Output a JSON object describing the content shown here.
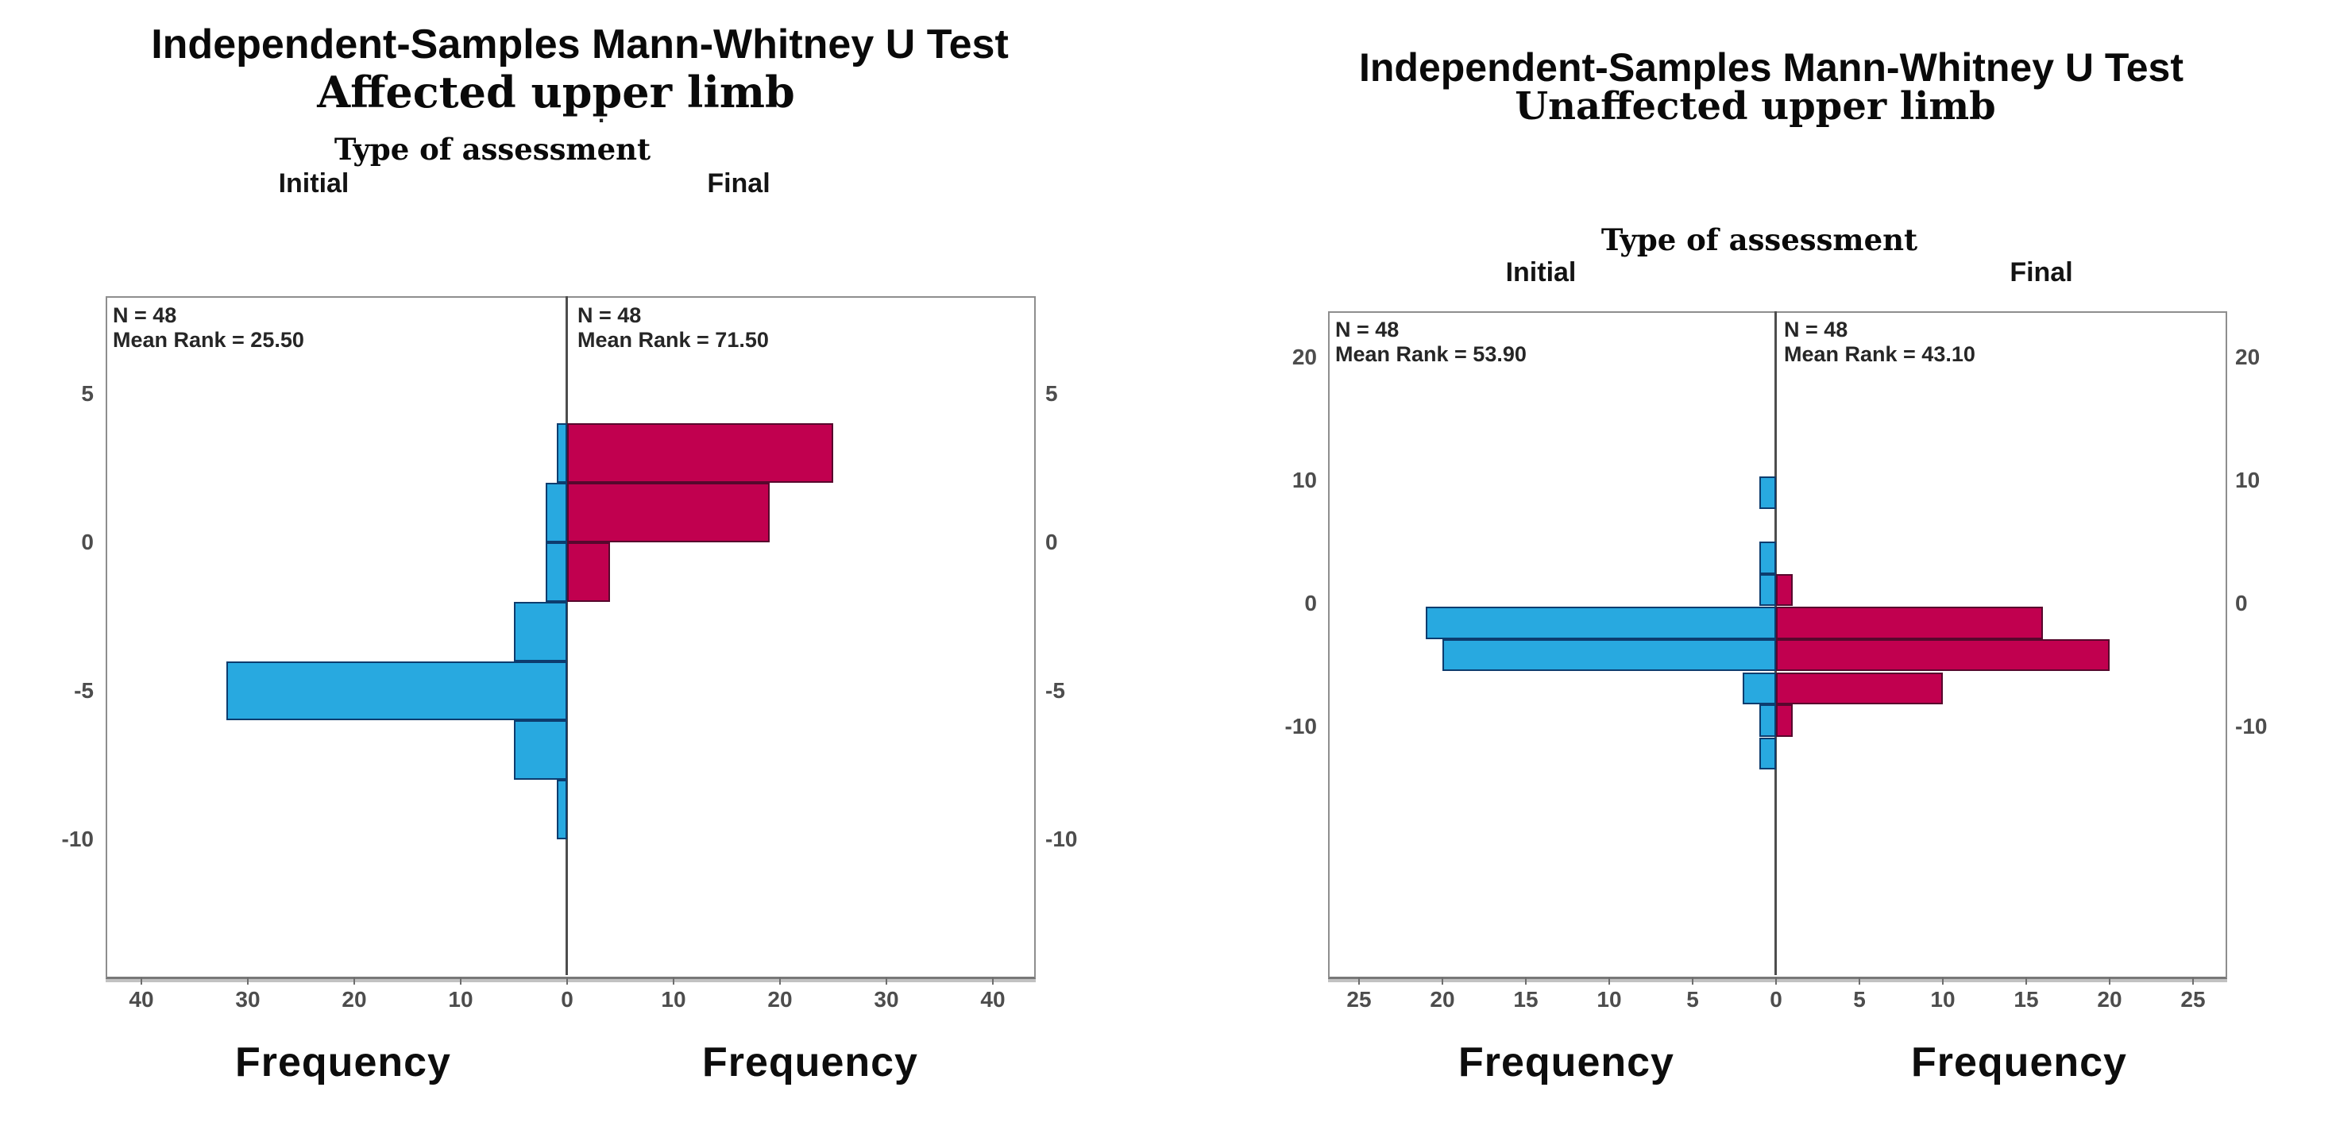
{
  "colors": {
    "initial_bar": "#28A9E0",
    "initial_bar_border": "#0D3C6E",
    "final_bar": "#C1004F",
    "final_bar_border": "#57082D",
    "axis_line": "#4D4D4D",
    "frame": "#8E8E8E",
    "tick_text": "#4D4D4D"
  },
  "charts": [
    {
      "title": "Independent-Samples Mann-Whitney U Test",
      "subtitle": "Affected upper limb",
      "stray_mark": ".",
      "panel_label": "Type of assessment",
      "group_left": "Initial",
      "group_right": "Final",
      "stats_initial_n": "N = 48",
      "stats_initial_mean_rank": "Mean Rank = 25.50",
      "stats_final_n": "N = 48",
      "stats_final_mean_rank": "Mean Rank = 71.50",
      "x_axis_label": "Frequency",
      "axis": {
        "y_ticks": [
          "5",
          "0",
          "-5",
          "-10"
        ],
        "x_ticks": [
          "40",
          "30",
          "20",
          "10",
          "0",
          "10",
          "20",
          "30",
          "40"
        ]
      },
      "chart_data": {
        "type": "bar",
        "variant": "population-pyramid-histogram",
        "orientation": "horizontal",
        "title": "Independent-Samples Mann-Whitney U Test — Affected upper limb",
        "value_axis_label": "Frequency",
        "bin_width": 2,
        "y_tick_values": [
          5,
          0,
          -5,
          -10
        ],
        "x_tick_step": 10,
        "x_tick_max": 40,
        "series": [
          {
            "name": "Initial",
            "side": "left",
            "n": 48,
            "mean_rank": 25.5,
            "color": "#28A9E0",
            "border_color": "#0D3C6E",
            "bins": [
              {
                "center": 3,
                "frequency": 1
              },
              {
                "center": 1,
                "frequency": 2
              },
              {
                "center": -1,
                "frequency": 2
              },
              {
                "center": -3,
                "frequency": 5
              },
              {
                "center": -5,
                "frequency": 32
              },
              {
                "center": -7,
                "frequency": 5
              },
              {
                "center": -9,
                "frequency": 1
              }
            ]
          },
          {
            "name": "Final",
            "side": "right",
            "n": 48,
            "mean_rank": 71.5,
            "color": "#C1004F",
            "border_color": "#57082D",
            "bins": [
              {
                "center": 3,
                "frequency": 25
              },
              {
                "center": 1,
                "frequency": 19
              },
              {
                "center": -1,
                "frequency": 4
              }
            ]
          }
        ]
      }
    },
    {
      "title": "Independent-Samples Mann-Whitney U Test",
      "subtitle": "Unaffected upper limb",
      "panel_label": "Type of assessment",
      "group_left": "Initial",
      "group_right": "Final",
      "stats_initial_n": "N = 48",
      "stats_initial_mean_rank": "Mean Rank = 53.90",
      "stats_final_n": "N = 48",
      "stats_final_mean_rank": "Mean Rank = 43.10",
      "x_axis_label": "Frequency",
      "axis": {
        "y_ticks": [
          "20",
          "10",
          "0",
          "-10"
        ],
        "x_ticks": [
          "25",
          "20",
          "15",
          "10",
          "5",
          "0",
          "5",
          "10",
          "15",
          "20",
          "25"
        ]
      },
      "chart_data": {
        "type": "bar",
        "variant": "population-pyramid-histogram",
        "orientation": "horizontal",
        "title": "Independent-Samples Mann-Whitney U Test — Unaffected upper limb",
        "value_axis_label": "Frequency",
        "bin_width": 2.6,
        "y_tick_values": [
          20,
          10,
          0,
          -10
        ],
        "x_tick_step": 5,
        "x_tick_max": 25,
        "series": [
          {
            "name": "Initial",
            "side": "left",
            "n": 48,
            "mean_rank": 53.9,
            "color": "#28A9E0",
            "border_color": "#0D3C6E",
            "bins": [
              {
                "center": 9,
                "frequency": 1
              },
              {
                "center": 3.7,
                "frequency": 1
              },
              {
                "center": 1.1,
                "frequency": 1
              },
              {
                "center": -1.6,
                "frequency": 21
              },
              {
                "center": -4.2,
                "frequency": 20
              },
              {
                "center": -6.9,
                "frequency": 2
              },
              {
                "center": -9.5,
                "frequency": 1
              },
              {
                "center": -12.2,
                "frequency": 1
              }
            ]
          },
          {
            "name": "Final",
            "side": "right",
            "n": 48,
            "mean_rank": 43.1,
            "color": "#C1004F",
            "border_color": "#57082D",
            "bins": [
              {
                "center": 1.1,
                "frequency": 1
              },
              {
                "center": -1.6,
                "frequency": 16
              },
              {
                "center": -4.2,
                "frequency": 20
              },
              {
                "center": -6.9,
                "frequency": 10
              },
              {
                "center": -9.5,
                "frequency": 1
              }
            ]
          }
        ]
      }
    }
  ]
}
